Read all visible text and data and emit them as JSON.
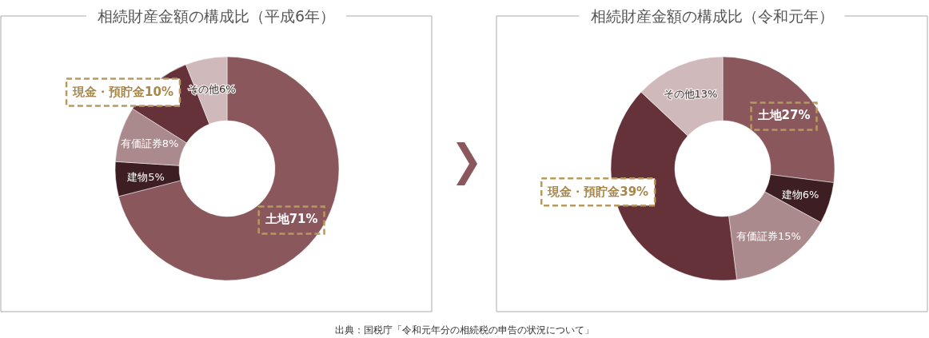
{
  "chart_data": [
    {
      "type": "donut",
      "title": "相続財産金額の構成比（平成6年）",
      "categories": [
        "土地",
        "建物",
        "有価証券",
        "現金・預貯金",
        "その他"
      ],
      "values": [
        71,
        5,
        8,
        10,
        6
      ],
      "colors": [
        "#8a575c",
        "#3d1e22",
        "#ab8a8d",
        "#66323a",
        "#cfb9bb"
      ],
      "value_labels": [
        "71%",
        "5%",
        "8%",
        "10%",
        "6%"
      ]
    },
    {
      "type": "donut",
      "title": "相続財産金額の構成比（令和元年）",
      "categories": [
        "土地",
        "建物",
        "有価証券",
        "現金・預貯金",
        "その他"
      ],
      "values": [
        27,
        6,
        15,
        39,
        13
      ],
      "colors": [
        "#8a575c",
        "#3d1e22",
        "#ab8a8d",
        "#66323a",
        "#cfb9bb"
      ],
      "value_labels": [
        "27%",
        "6%",
        "15%",
        "39%",
        "13%"
      ],
      "annotations": [
        "出典：国税庁「令和元年分の相続税の申告の状況について」"
      ]
    }
  ]
}
